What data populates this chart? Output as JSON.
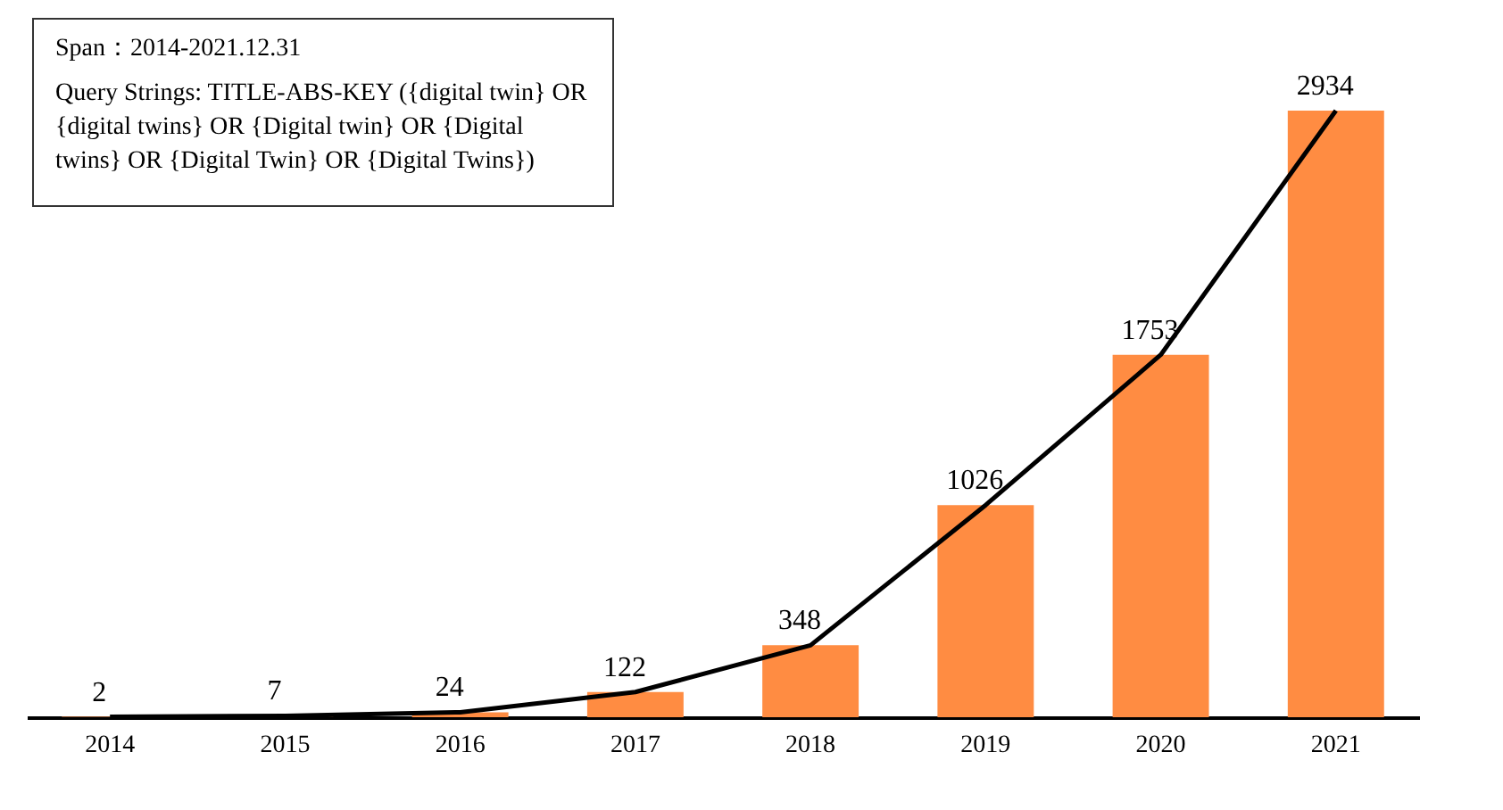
{
  "chart_data": {
    "type": "bar",
    "categories": [
      "2014",
      "2015",
      "2016",
      "2017",
      "2018",
      "2019",
      "2020",
      "2021"
    ],
    "series": [
      {
        "color": "#ff8c42",
        "values": [
          2,
          7,
          24,
          122,
          348,
          1026,
          1753,
          2934
        ],
        "value_labels": [
          "2",
          "7",
          "24",
          "122",
          "348",
          "1026",
          "1753",
          "2934"
        ]
      },
      {
        "type": "line",
        "color": "#000000",
        "values": [
          2,
          7,
          24,
          122,
          348,
          1026,
          1753,
          2934
        ]
      }
    ],
    "annotations": [
      "Span：2014-2021.12.31",
      "Query Strings: TITLE-ABS-KEY ({digital twin} OR {digital twins} OR {Digital twin} OR {Digital twins} OR {Digital Twin} OR {Digital Twins})"
    ]
  }
}
